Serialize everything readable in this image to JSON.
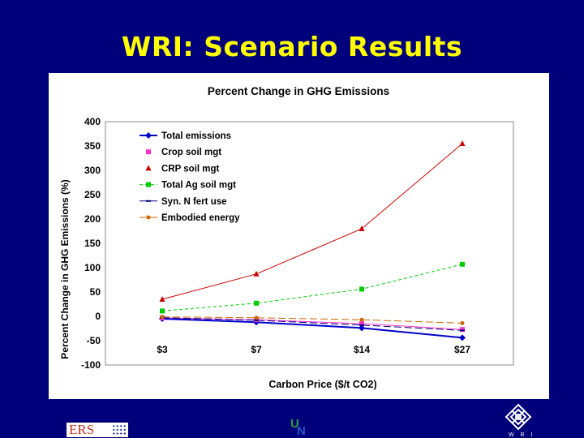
{
  "slide": {
    "title": "WRI: Scenario Results"
  },
  "footer": {
    "ers_logo_text": "ERS",
    "wri_logo_text": "W R I"
  },
  "chart_data": {
    "type": "line",
    "title": "Percent Change in GHG Emissions",
    "xlabel": "Carbon Price ($/t CO2)",
    "ylabel": "Percent Change in GHG Emissions (%)",
    "categories": [
      "$3",
      "$7",
      "$14",
      "$27"
    ],
    "ylim": [
      -100,
      400
    ],
    "yticks": [
      400,
      350,
      300,
      250,
      200,
      150,
      100,
      50,
      0,
      -50,
      -100
    ],
    "grid": false,
    "legend_position": "top-left",
    "series": [
      {
        "name": "Total emissions",
        "values": [
          -5,
          -12,
          -24,
          -44
        ],
        "color": "#0000cc",
        "marker": "diamond",
        "dash": "solid"
      },
      {
        "name": "Crop soil mgt",
        "values": [
          -3,
          -7,
          -15,
          -27
        ],
        "color": "#ff33cc",
        "marker": "square",
        "dash": "solid"
      },
      {
        "name": "CRP soil mgt",
        "values": [
          35,
          87,
          180,
          355
        ],
        "color": "#cc0000",
        "marker": "triangle",
        "dash": "solid"
      },
      {
        "name": "Total Ag soil mgt",
        "values": [
          11,
          27,
          56,
          107
        ],
        "color": "#00cc00",
        "marker": "square",
        "dash": "dashed"
      },
      {
        "name": "Syn. N fert use",
        "values": [
          -3,
          -8,
          -18,
          -29
        ],
        "color": "#000080",
        "marker": "dash",
        "dash": "longdash"
      },
      {
        "name": "Embodied energy",
        "values": [
          -1,
          -3,
          -7,
          -14
        ],
        "color": "#cc6600",
        "marker": "circle",
        "dash": "longdash"
      }
    ]
  }
}
